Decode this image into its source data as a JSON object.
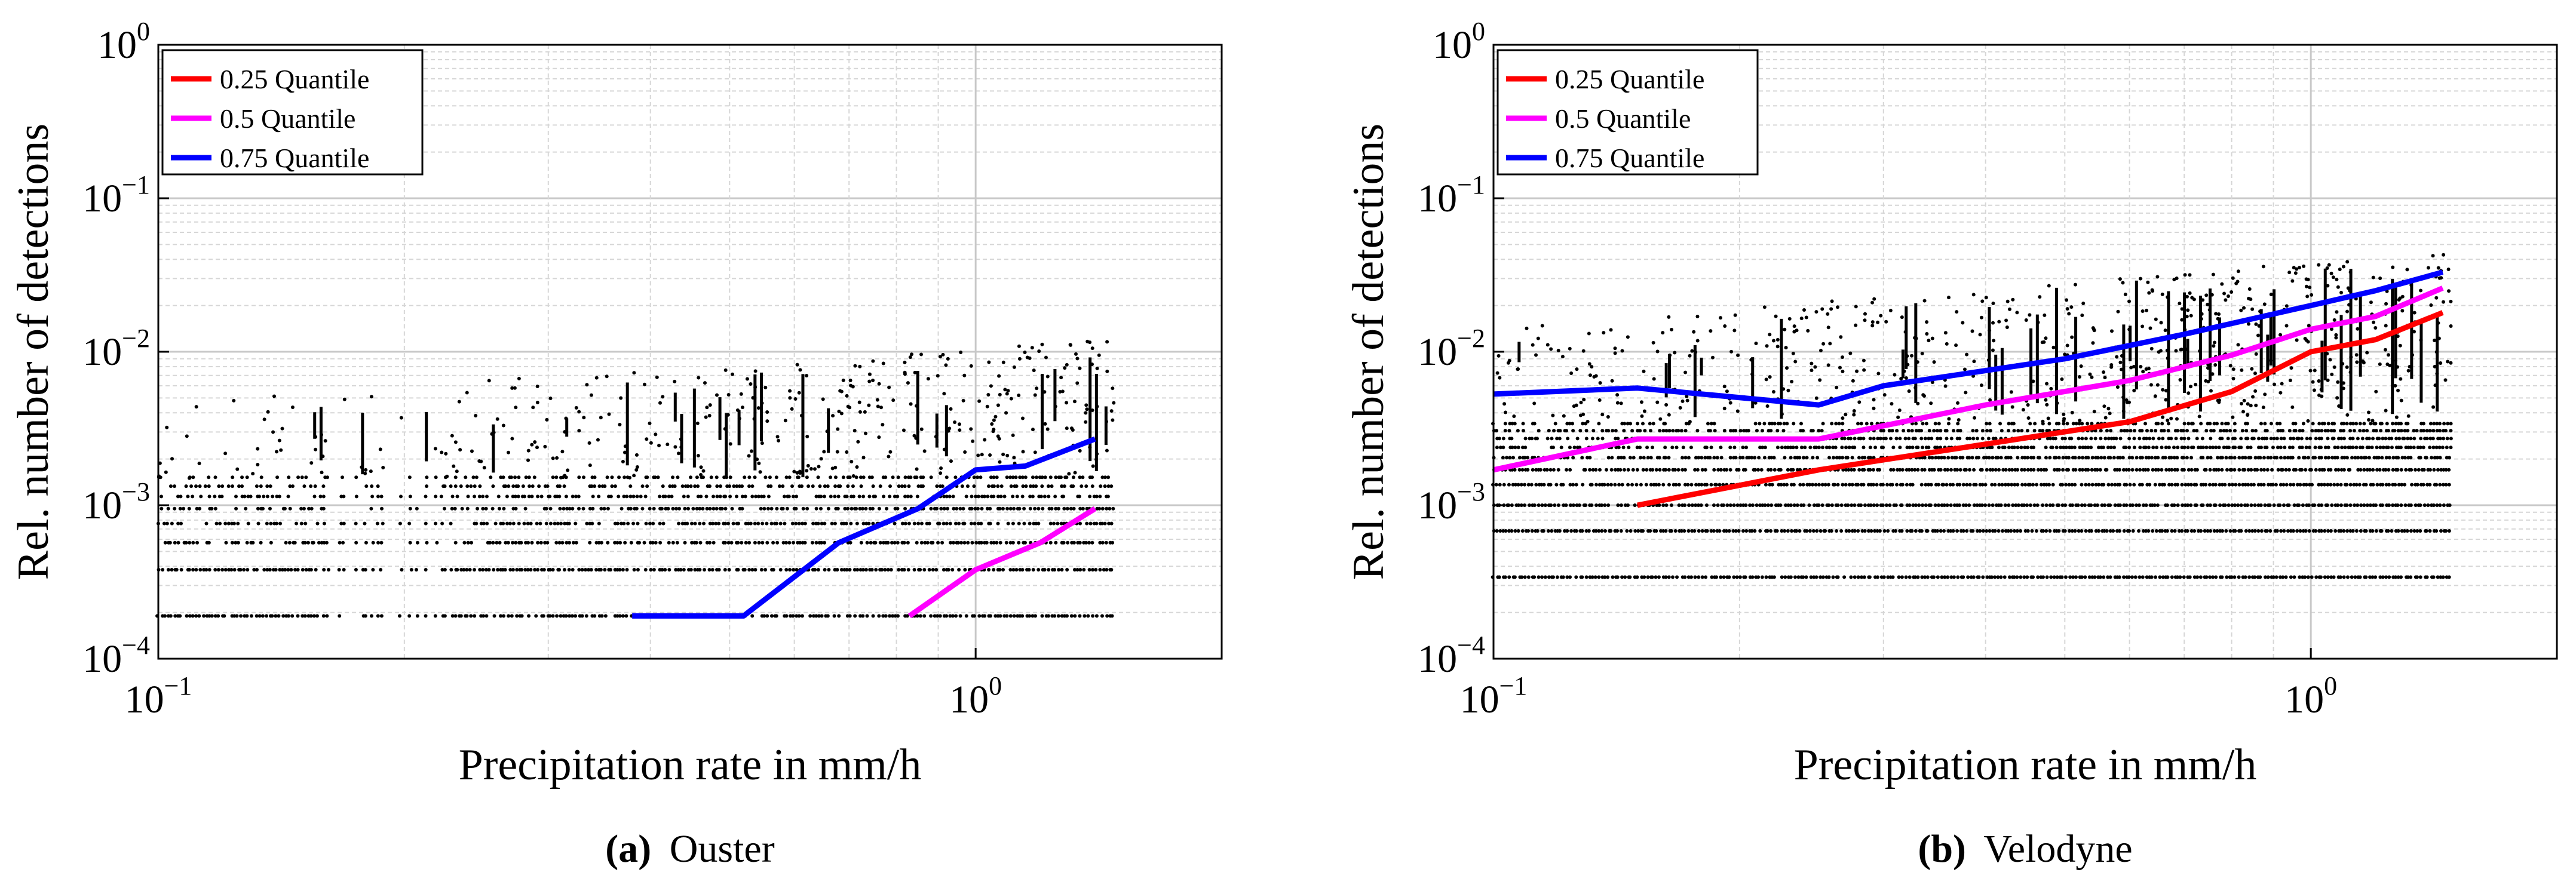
{
  "chart_data": [
    {
      "type": "line",
      "panel_tag": "(a)",
      "panel_name": "Ouster",
      "xlabel": "Precipitation rate in mm/h",
      "ylabel": "Rel. number of detections",
      "xscale": "log",
      "yscale": "log",
      "xlim": [
        0.1,
        2.0
      ],
      "ylim": [
        0.0001,
        1
      ],
      "x_ticks": [
        {
          "value": 0.1,
          "base": "10",
          "exp": "−1"
        },
        {
          "value": 1,
          "base": "10",
          "exp": "0"
        }
      ],
      "y_ticks": [
        {
          "value": 1,
          "base": "10",
          "exp": "0"
        },
        {
          "value": 0.1,
          "base": "10",
          "exp": "−1"
        },
        {
          "value": 0.01,
          "base": "10",
          "exp": "−2"
        },
        {
          "value": 0.001,
          "base": "10",
          "exp": "−3"
        },
        {
          "value": 0.0001,
          "base": "10",
          "exp": "−4"
        }
      ],
      "grid": true,
      "legend_position": "top-left",
      "series": [
        {
          "name": "0.25 Quantile",
          "color": "#ff0000",
          "x": [],
          "y": []
        },
        {
          "name": "0.5 Quantile",
          "color": "#ff00ff",
          "x": [
            0.83,
            1.0,
            1.2,
            1.4
          ],
          "y": [
            0.00019,
            0.00038,
            0.00057,
            0.00095
          ]
        },
        {
          "name": "0.75 Quantile",
          "color": "#0000ff",
          "x": [
            0.38,
            0.52,
            0.68,
            0.85,
            1.0,
            1.15,
            1.4
          ],
          "y": [
            0.00019,
            0.00019,
            0.00057,
            0.00095,
            0.0017,
            0.0018,
            0.0027
          ]
        }
      ],
      "scatter": {
        "x_range": [
          0.1,
          1.47
        ],
        "levels": [
          0.00019,
          0.00038,
          0.00057,
          0.00076,
          0.00095,
          0.00114,
          0.00133,
          0.00152
        ],
        "upper_min": 0.0015,
        "upper_max": 0.012,
        "density": 0.9
      }
    },
    {
      "type": "line",
      "panel_tag": "(b)",
      "panel_name": "Velodyne",
      "xlabel": "Precipitation rate in mm/h",
      "ylabel": "Rel. number of detections",
      "xscale": "log",
      "yscale": "log",
      "xlim": [
        0.1,
        2.0
      ],
      "ylim": [
        0.0001,
        1
      ],
      "x_ticks": [
        {
          "value": 0.1,
          "base": "10",
          "exp": "−1"
        },
        {
          "value": 1,
          "base": "10",
          "exp": "0"
        }
      ],
      "y_ticks": [
        {
          "value": 1,
          "base": "10",
          "exp": "0"
        },
        {
          "value": 0.1,
          "base": "10",
          "exp": "−1"
        },
        {
          "value": 0.01,
          "base": "10",
          "exp": "−2"
        },
        {
          "value": 0.001,
          "base": "10",
          "exp": "−3"
        },
        {
          "value": 0.0001,
          "base": "10",
          "exp": "−4"
        }
      ],
      "grid": true,
      "legend_position": "top-left",
      "series": [
        {
          "name": "0.25 Quantile",
          "color": "#ff0000",
          "x": [
            0.15,
            0.25,
            0.4,
            0.6,
            0.8,
            1.0,
            1.2,
            1.45
          ],
          "y": [
            0.001,
            0.0017,
            0.0025,
            0.0035,
            0.0055,
            0.01,
            0.012,
            0.018
          ]
        },
        {
          "name": "0.5 Quantile",
          "color": "#ff00ff",
          "x": [
            0.1,
            0.15,
            0.25,
            0.4,
            0.6,
            0.8,
            1.0,
            1.2,
            1.45
          ],
          "y": [
            0.0017,
            0.0027,
            0.0027,
            0.0045,
            0.0065,
            0.0095,
            0.014,
            0.017,
            0.026
          ]
        },
        {
          "name": "0.75 Quantile",
          "color": "#0000ff",
          "x": [
            0.1,
            0.15,
            0.25,
            0.3,
            0.5,
            0.7,
            1.0,
            1.2,
            1.45
          ],
          "y": [
            0.0053,
            0.0058,
            0.0045,
            0.006,
            0.009,
            0.013,
            0.02,
            0.025,
            0.033
          ]
        }
      ],
      "scatter": {
        "x_range": [
          0.1,
          1.48
        ],
        "levels": [
          0.00034,
          0.00068,
          0.001,
          0.00136,
          0.0017,
          0.00204,
          0.00238,
          0.00272,
          0.00306,
          0.0034
        ],
        "upper_min": 0.0035,
        "upper_max": 0.045,
        "density": 1.3
      }
    }
  ],
  "captions": [
    {
      "tag": "(a)",
      "text": "Ouster"
    },
    {
      "tag": "(b)",
      "text": "Velodyne"
    }
  ]
}
